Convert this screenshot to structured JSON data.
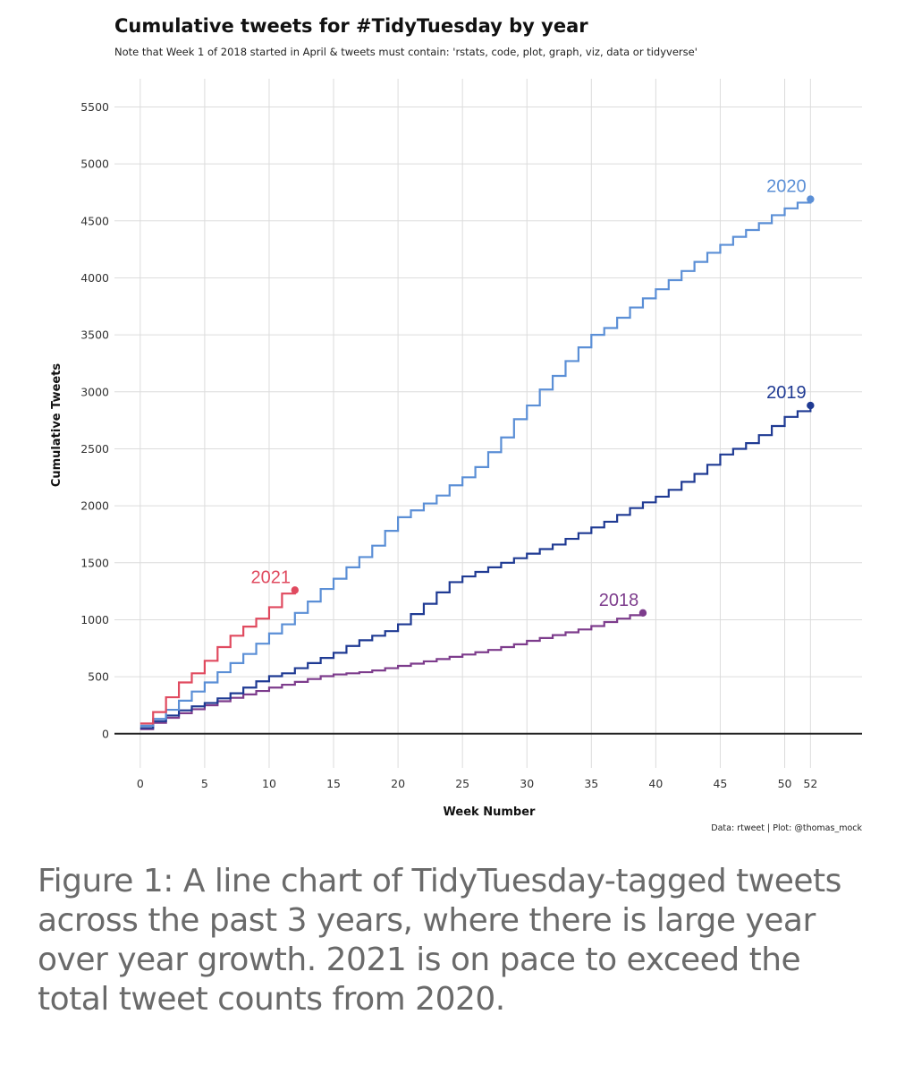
{
  "chart_data": {
    "type": "line",
    "title": "Cumulative tweets for #TidyTuesday by year",
    "subtitle": "Note that Week 1 of 2018 started in April & tweets must contain: 'rstats, code, plot, graph, viz, data or tidyverse'",
    "xlabel": "Week Number",
    "ylabel": "Cumulative Tweets",
    "xlim": [
      -2,
      56
    ],
    "ylim": [
      -300,
      5700
    ],
    "x_ticks": [
      0,
      5,
      10,
      15,
      20,
      25,
      30,
      35,
      40,
      45,
      50,
      52
    ],
    "y_ticks": [
      0,
      500,
      1000,
      1500,
      2000,
      2500,
      3000,
      3500,
      4000,
      4500,
      5000,
      5500
    ],
    "grid": true,
    "caption": "Data: rtweet | Plot: @thomas_mock",
    "series": [
      {
        "name": "2018",
        "color": "#7d3c8c",
        "x": [
          0,
          1,
          2,
          3,
          4,
          5,
          6,
          7,
          8,
          9,
          10,
          11,
          12,
          13,
          14,
          15,
          16,
          17,
          18,
          19,
          20,
          21,
          22,
          23,
          24,
          25,
          26,
          27,
          28,
          29,
          30,
          31,
          32,
          33,
          34,
          35,
          36,
          37,
          38,
          39
        ],
        "y": [
          40,
          95,
          140,
          180,
          215,
          250,
          285,
          315,
          345,
          375,
          405,
          430,
          455,
          480,
          505,
          520,
          530,
          540,
          555,
          575,
          595,
          615,
          635,
          655,
          675,
          695,
          715,
          735,
          760,
          785,
          815,
          840,
          865,
          890,
          915,
          945,
          980,
          1010,
          1040,
          1060
        ]
      },
      {
        "name": "2019",
        "color": "#1f3a93",
        "x": [
          0,
          1,
          2,
          3,
          4,
          5,
          6,
          7,
          8,
          9,
          10,
          11,
          12,
          13,
          14,
          15,
          16,
          17,
          18,
          19,
          20,
          21,
          22,
          23,
          24,
          25,
          26,
          27,
          28,
          29,
          30,
          31,
          32,
          33,
          34,
          35,
          36,
          37,
          38,
          39,
          40,
          41,
          42,
          43,
          44,
          45,
          46,
          47,
          48,
          49,
          50,
          51,
          52
        ],
        "y": [
          50,
          110,
          160,
          205,
          240,
          270,
          310,
          355,
          405,
          460,
          505,
          530,
          575,
          620,
          665,
          710,
          770,
          820,
          860,
          900,
          960,
          1050,
          1140,
          1240,
          1330,
          1380,
          1420,
          1460,
          1500,
          1540,
          1580,
          1620,
          1660,
          1710,
          1760,
          1810,
          1860,
          1920,
          1980,
          2030,
          2080,
          2140,
          2210,
          2280,
          2360,
          2450,
          2500,
          2550,
          2620,
          2700,
          2780,
          2830,
          2880
        ]
      },
      {
        "name": "2020",
        "color": "#5b8fd6",
        "x": [
          0,
          1,
          2,
          3,
          4,
          5,
          6,
          7,
          8,
          9,
          10,
          11,
          12,
          13,
          14,
          15,
          16,
          17,
          18,
          19,
          20,
          21,
          22,
          23,
          24,
          25,
          26,
          27,
          28,
          29,
          30,
          31,
          32,
          33,
          34,
          35,
          36,
          37,
          38,
          39,
          40,
          41,
          42,
          43,
          44,
          45,
          46,
          47,
          48,
          49,
          50,
          51,
          52
        ],
        "y": [
          70,
          130,
          210,
          290,
          370,
          450,
          540,
          620,
          700,
          790,
          880,
          960,
          1060,
          1160,
          1270,
          1360,
          1460,
          1550,
          1650,
          1780,
          1900,
          1960,
          2020,
          2090,
          2180,
          2250,
          2340,
          2470,
          2600,
          2760,
          2880,
          3020,
          3140,
          3270,
          3390,
          3500,
          3560,
          3650,
          3740,
          3820,
          3900,
          3980,
          4060,
          4140,
          4220,
          4290,
          4360,
          4420,
          4480,
          4550,
          4610,
          4660,
          4690
        ]
      },
      {
        "name": "2021",
        "color": "#e04a5f",
        "x": [
          0,
          1,
          2,
          3,
          4,
          5,
          6,
          7,
          8,
          9,
          10,
          11,
          12
        ],
        "y": [
          90,
          190,
          320,
          450,
          530,
          640,
          760,
          860,
          940,
          1010,
          1110,
          1230,
          1260
        ]
      }
    ]
  }
}
